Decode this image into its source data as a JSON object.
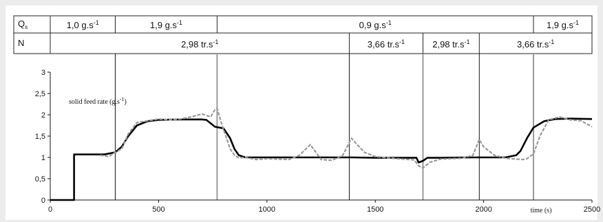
{
  "table": {
    "row1_label": "Q",
    "row1_label_sub": "s",
    "row2_label": "N",
    "qs_segments": [
      {
        "label": "1,0 g.s",
        "exp": "-1",
        "start": 0,
        "end": 300
      },
      {
        "label": "1,9 g.s",
        "exp": "-1",
        "start": 300,
        "end": 770
      },
      {
        "label": "0,9 g.s",
        "exp": "-1",
        "start": 770,
        "end": 2230
      },
      {
        "label": "1,9 g.s",
        "exp": "-1",
        "start": 2230,
        "end": 2500
      }
    ],
    "n_segments": [
      {
        "label": "2,98 tr.s",
        "exp": "-1",
        "start": 0,
        "end": 1380
      },
      {
        "label": "3,66 tr.s",
        "exp": "-1",
        "start": 1380,
        "end": 1720
      },
      {
        "label": "2,98 tr.s",
        "exp": "-1",
        "start": 1720,
        "end": 1980
      },
      {
        "label": "3,66 tr.s",
        "exp": "-1",
        "start": 1980,
        "end": 2500
      }
    ]
  },
  "chart_data": {
    "type": "line",
    "xlim": [
      0,
      2500
    ],
    "ylim": [
      0,
      3
    ],
    "x_ticks": [
      0,
      500,
      1000,
      1500,
      2000,
      2500
    ],
    "y_ticks": [
      "0",
      "0,5",
      "1",
      "1,5",
      "2",
      "2,5",
      "3"
    ],
    "y_tick_values": [
      0,
      0.5,
      1,
      1.5,
      2,
      2.5,
      3
    ],
    "xlabel": "time (s)",
    "annotation": {
      "text": "solid feed rate (g.s",
      "exp": "-1",
      "close": ")"
    },
    "grid": false,
    "vertical_markers": {
      "black": [
        300,
        1380,
        1980
      ],
      "gray": [
        770,
        1720,
        2230
      ]
    },
    "series": [
      {
        "color": "#000000",
        "x": [
          0,
          110,
          110,
          250,
          300,
          330,
          360,
          400,
          450,
          500,
          600,
          700,
          720,
          760,
          800,
          830,
          850,
          870,
          900,
          1000,
          1200,
          1370,
          1390,
          1500,
          1690,
          1700,
          1720,
          1740,
          1800,
          1950,
          1980,
          2100,
          2150,
          2170,
          2200,
          2230,
          2280,
          2330,
          2400,
          2500
        ],
        "y": [
          0,
          0,
          1.07,
          1.07,
          1.12,
          1.25,
          1.5,
          1.75,
          1.85,
          1.88,
          1.89,
          1.89,
          1.88,
          1.72,
          1.68,
          1.45,
          1.2,
          1.05,
          1.0,
          1.0,
          1.0,
          1.0,
          1.0,
          0.99,
          0.99,
          0.88,
          0.92,
          0.99,
          0.99,
          1.0,
          1.0,
          1.0,
          1.05,
          1.15,
          1.45,
          1.7,
          1.85,
          1.9,
          1.91,
          1.9
        ]
      },
      {
        "color": "#999999",
        "x": [
          230,
          270,
          300,
          330,
          360,
          400,
          450,
          500,
          550,
          600,
          650,
          700,
          740,
          760,
          770,
          790,
          810,
          830,
          850,
          870,
          900,
          950,
          1000,
          1100,
          1150,
          1200,
          1250,
          1300,
          1350,
          1375,
          1390,
          1420,
          1450,
          1500,
          1600,
          1680,
          1700,
          1720,
          1750,
          1800,
          1900,
          1950,
          1980,
          2000,
          2050,
          2100,
          2150,
          2180,
          2200,
          2230,
          2260,
          2300,
          2350,
          2400,
          2450,
          2500
        ],
        "y": [
          1.05,
          1.02,
          1.12,
          1.2,
          1.55,
          1.82,
          1.86,
          1.9,
          1.88,
          1.9,
          1.95,
          2.02,
          1.95,
          2.12,
          2.15,
          1.8,
          1.5,
          1.2,
          1.05,
          0.99,
          1.0,
          0.95,
          0.97,
          0.95,
          1.05,
          1.3,
          0.95,
          0.93,
          1.05,
          1.3,
          1.45,
          1.28,
          1.12,
          1.02,
          0.97,
          0.94,
          0.8,
          0.75,
          0.88,
          0.96,
          0.98,
          1.05,
          1.42,
          1.25,
          1.05,
          0.98,
          0.96,
          0.95,
          0.97,
          1.08,
          1.5,
          1.88,
          1.95,
          1.88,
          1.86,
          1.72
        ]
      }
    ]
  }
}
